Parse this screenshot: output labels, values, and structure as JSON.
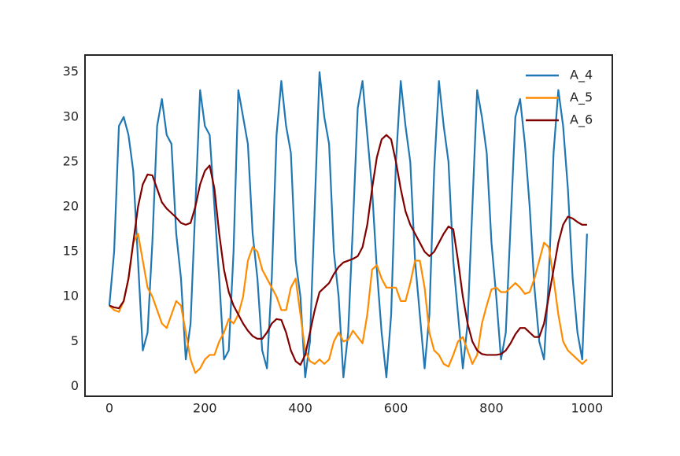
{
  "chart_data": {
    "type": "line",
    "x": [
      0,
      10,
      20,
      30,
      40,
      50,
      60,
      70,
      80,
      90,
      100,
      110,
      120,
      130,
      140,
      150,
      160,
      170,
      180,
      190,
      200,
      210,
      220,
      230,
      240,
      250,
      260,
      270,
      280,
      290,
      300,
      310,
      320,
      330,
      340,
      350,
      360,
      370,
      380,
      390,
      400,
      410,
      420,
      430,
      440,
      450,
      460,
      470,
      480,
      490,
      500,
      510,
      520,
      530,
      540,
      550,
      560,
      570,
      580,
      590,
      600,
      610,
      620,
      630,
      640,
      650,
      660,
      670,
      680,
      690,
      700,
      710,
      720,
      730,
      740,
      750,
      760,
      770,
      780,
      790,
      800,
      810,
      820,
      830,
      840,
      850,
      860,
      870,
      880,
      890,
      900,
      910,
      920,
      930,
      940,
      950,
      960,
      970,
      980,
      990,
      1000
    ],
    "series": [
      {
        "name": "A_4",
        "color": "#1f77b4",
        "values": [
          9,
          15,
          29,
          30,
          28,
          24,
          14,
          4,
          6,
          16,
          29,
          32,
          28,
          27,
          17,
          12,
          3,
          7,
          20,
          33,
          29,
          28,
          20,
          12,
          3,
          4,
          15,
          33,
          30,
          27,
          17,
          12,
          4,
          2,
          12,
          28,
          34,
          29,
          26,
          14,
          10,
          1,
          5,
          20,
          35,
          30,
          27,
          15,
          10,
          1,
          6,
          18,
          31,
          34,
          28,
          22,
          13,
          6,
          1,
          8,
          25,
          34,
          29,
          25,
          14,
          8,
          2,
          8,
          24,
          34,
          29,
          25,
          14,
          8,
          2,
          7,
          20,
          33,
          30,
          26,
          16,
          10,
          3,
          6,
          18,
          30,
          32,
          27,
          20,
          11,
          5,
          3,
          12,
          26,
          33,
          29,
          22,
          12,
          6,
          3,
          17
        ]
      },
      {
        "name": "A_5",
        "color": "#ff8c00",
        "values": [
          9,
          8.5,
          8.3,
          9.5,
          12,
          16,
          17,
          14,
          11,
          10,
          8.5,
          7,
          6.5,
          8,
          9.5,
          9,
          6,
          3,
          1.5,
          2,
          3,
          3.5,
          3.5,
          5,
          6,
          7.5,
          7,
          8,
          10,
          14,
          15.5,
          15,
          13,
          12,
          11,
          10,
          8.5,
          8.5,
          11,
          12,
          8,
          4,
          2.8,
          2.5,
          3,
          2.5,
          3,
          5,
          6,
          5,
          5.2,
          6.2,
          5.5,
          4.8,
          8,
          13,
          13.5,
          12,
          11,
          11,
          11,
          9.5,
          9.5,
          11.5,
          14,
          14,
          11,
          6,
          4,
          3.5,
          2.5,
          2.2,
          3.5,
          5,
          5.5,
          4,
          2.5,
          3.5,
          7,
          9,
          10.8,
          11,
          10.5,
          10.5,
          11,
          11.5,
          11,
          10.3,
          10.5,
          12,
          14,
          16,
          15.5,
          12,
          8,
          5,
          4,
          3.5,
          3,
          2.5,
          3
        ]
      },
      {
        "name": "A_6",
        "color": "#800000",
        "values": [
          9,
          8.8,
          8.7,
          9.5,
          12,
          16,
          20,
          22.5,
          23.6,
          23.5,
          22,
          20.5,
          19.8,
          19.3,
          18.8,
          18.2,
          18,
          18.2,
          20,
          22.5,
          24,
          24.6,
          22,
          17,
          13,
          10.5,
          9,
          8,
          7,
          6.2,
          5.6,
          5.3,
          5.3,
          6,
          7,
          7.5,
          7.4,
          6,
          4,
          2.8,
          2.4,
          3.5,
          6,
          8.5,
          10.5,
          11,
          11.5,
          12.5,
          13.3,
          13.8,
          14,
          14.2,
          14.5,
          15.5,
          18,
          22,
          25.5,
          27.5,
          28,
          27.5,
          25,
          22,
          19.5,
          18,
          17,
          16,
          15,
          14.5,
          15,
          16,
          17,
          17.8,
          17.5,
          14,
          10,
          7,
          5,
          4,
          3.6,
          3.5,
          3.5,
          3.5,
          3.6,
          4,
          4.8,
          5.8,
          6.5,
          6.5,
          6,
          5.5,
          5.5,
          7,
          10,
          13,
          16,
          18,
          18.9,
          18.7,
          18.3,
          18,
          18
        ]
      }
    ],
    "xlim": [
      -51,
      1053
    ],
    "ylim": [
      -1.1,
      36.9
    ],
    "xticks": [
      0,
      200,
      400,
      600,
      800,
      1000
    ],
    "yticks": [
      0,
      5,
      10,
      15,
      20,
      25,
      30,
      35
    ],
    "grid": false,
    "legend": "upper right"
  }
}
